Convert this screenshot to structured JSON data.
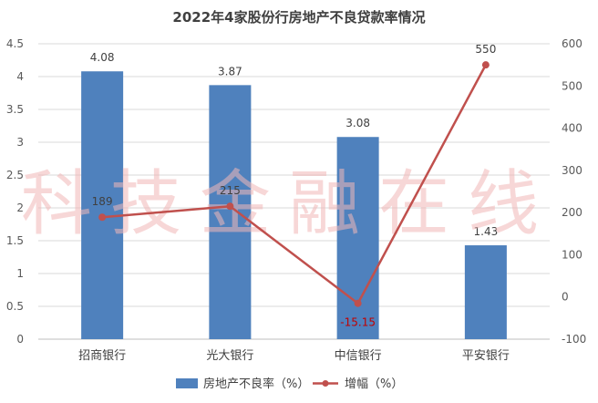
{
  "chart_data": {
    "type": "bar",
    "title": "2022年4家股份行房地产不良贷款率情况",
    "categories": [
      "招商银行",
      "光大银行",
      "中信银行",
      "平安银行"
    ],
    "series": [
      {
        "name": "房地产不良率（%）",
        "type": "bar",
        "axis": "left",
        "values": [
          4.08,
          3.87,
          3.08,
          1.43
        ],
        "color": "#4f81bd"
      },
      {
        "name": "增幅（%）",
        "type": "line",
        "axis": "right",
        "values": [
          189,
          215,
          -15.15,
          550
        ],
        "color": "#c0504d"
      }
    ],
    "data_labels": {
      "bar": [
        "4.08",
        "3.87",
        "3.08",
        "1.43"
      ],
      "line": [
        "189",
        "215",
        "-15.15",
        "550"
      ]
    },
    "y_left": {
      "ylim": [
        0,
        4.5
      ],
      "ticks": [
        "0",
        "0.5",
        "1",
        "1.5",
        "2",
        "2.5",
        "3",
        "3.5",
        "4",
        "4.5"
      ]
    },
    "y_right": {
      "ylim": [
        -100,
        600
      ],
      "ticks": [
        "-100",
        "0",
        "100",
        "200",
        "300",
        "400",
        "500",
        "600"
      ]
    },
    "grid": true,
    "legend_position": "bottom"
  },
  "watermark": "科技金融在线"
}
